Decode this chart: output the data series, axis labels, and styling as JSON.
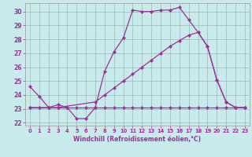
{
  "xlabel": "Windchill (Refroidissement éolien,°C)",
  "xlim": [
    -0.5,
    23.5
  ],
  "ylim": [
    21.8,
    30.6
  ],
  "yticks": [
    22,
    23,
    24,
    25,
    26,
    27,
    28,
    29,
    30
  ],
  "xticks": [
    0,
    1,
    2,
    3,
    4,
    5,
    6,
    7,
    8,
    9,
    10,
    11,
    12,
    13,
    14,
    15,
    16,
    17,
    18,
    19,
    20,
    21,
    22,
    23
  ],
  "bg_color": "#c8eaea",
  "grid_color": "#9ab8b8",
  "line_color": "#993399",
  "line_width": 0.9,
  "marker": "D",
  "marker_size": 2.2,
  "series": [
    {
      "x": [
        0,
        1,
        2,
        3,
        4,
        5,
        6,
        7,
        8,
        9,
        10,
        11,
        12,
        13,
        14,
        15,
        16,
        17,
        18,
        19,
        20,
        21,
        22,
        23
      ],
      "y": [
        24.6,
        23.9,
        23.1,
        23.3,
        23.1,
        22.3,
        22.3,
        23.1,
        25.7,
        27.1,
        28.1,
        30.1,
        30.0,
        30.0,
        30.1,
        30.1,
        30.3,
        29.4,
        28.5,
        27.5,
        25.1,
        23.5,
        23.1,
        23.1
      ]
    },
    {
      "x": [
        0,
        1,
        2,
        3,
        4,
        5,
        6,
        7,
        8,
        9,
        10,
        11,
        12,
        13,
        14,
        15,
        16,
        17,
        18,
        19,
        20,
        21,
        22,
        23
      ],
      "y": [
        23.1,
        23.1,
        23.1,
        23.1,
        23.1,
        23.1,
        23.1,
        23.1,
        23.1,
        23.1,
        23.1,
        23.1,
        23.1,
        23.1,
        23.1,
        23.1,
        23.1,
        23.1,
        23.1,
        23.1,
        23.1,
        23.1,
        23.1,
        23.1
      ]
    },
    {
      "x": [
        0,
        2,
        3,
        7,
        8,
        9,
        10,
        11,
        12,
        13,
        14,
        15,
        16,
        17,
        18,
        19,
        20,
        21,
        22,
        23
      ],
      "y": [
        23.1,
        23.1,
        23.1,
        23.5,
        24.0,
        24.5,
        25.0,
        25.5,
        26.0,
        26.5,
        27.0,
        27.5,
        27.9,
        28.3,
        28.5,
        27.5,
        25.1,
        23.5,
        23.1,
        23.1
      ]
    }
  ]
}
